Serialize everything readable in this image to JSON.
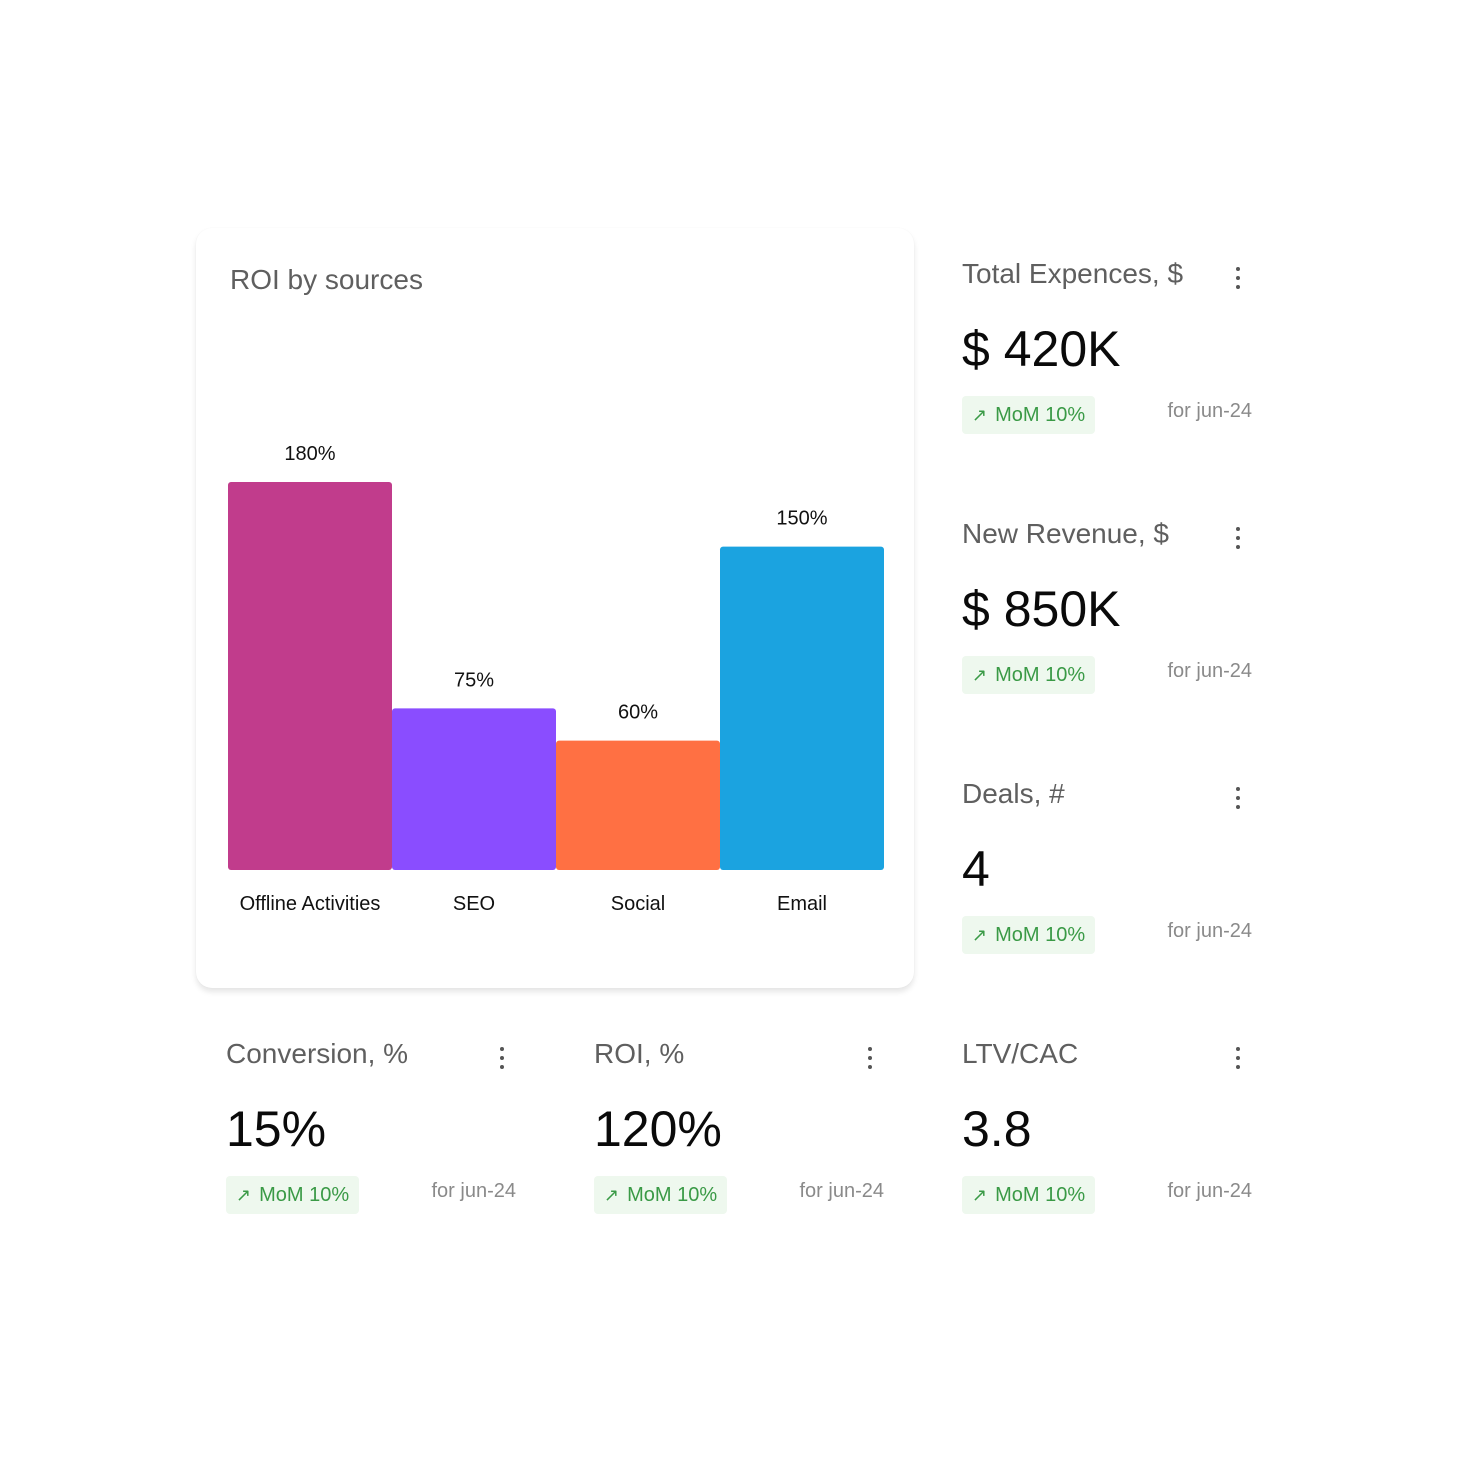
{
  "chart": {
    "title": "ROI by sources"
  },
  "chart_data": {
    "type": "bar",
    "title": "ROI by sources",
    "categories": [
      "Offline Activities",
      "SEO",
      "Social",
      "Email"
    ],
    "values": [
      180,
      75,
      60,
      150
    ],
    "value_labels": [
      "180%",
      "75%",
      "60%",
      "150%"
    ],
    "colors": [
      "#c13c8c",
      "#8a4dff",
      "#ff7043",
      "#1ba3e0"
    ],
    "ylim": [
      0,
      180
    ],
    "grid": false,
    "legend": "none"
  },
  "metrics": {
    "total_expences": {
      "title": "Total Expences, $",
      "value": "$ 420K",
      "badge": "MoM 10%",
      "period": "for jun-24"
    },
    "new_revenue": {
      "title": "New Revenue, $",
      "value": "$ 850K",
      "badge": "MoM 10%",
      "period": "for jun-24"
    },
    "deals": {
      "title": "Deals, #",
      "value": "4",
      "badge": "MoM 10%",
      "period": "for jun-24"
    },
    "conversion": {
      "title": "Conversion, %",
      "value": "15%",
      "badge": "MoM 10%",
      "period": "for jun-24"
    },
    "roi": {
      "title": "ROI, %",
      "value": "120%",
      "badge": "MoM 10%",
      "period": "for jun-24"
    },
    "ltv_cac": {
      "title": "LTV/CAC",
      "value": "3.8",
      "badge": "MoM 10%",
      "period": "for jun-24"
    }
  },
  "icons": {
    "menu": "more-vertical-icon",
    "trend": "arrow-up-right-icon",
    "trend_color": "#3a9a46",
    "trend_bg": "#eef8ee"
  }
}
